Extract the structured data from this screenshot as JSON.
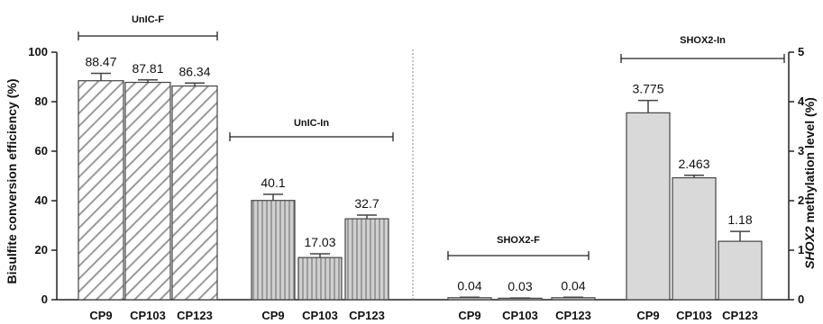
{
  "chart_data": {
    "type": "bar",
    "ylabel": "Bisulfite conversion efficiency (%)",
    "ylabel_right_italic": "SHOX2",
    "ylabel_right_rest": " methylation level (%)",
    "left_axis": {
      "ylim": [
        0,
        100
      ],
      "ticks": [
        "0",
        "20",
        "40",
        "60",
        "80",
        "100"
      ]
    },
    "right_axis": {
      "ylim": [
        0,
        5
      ],
      "ticks": [
        "0",
        "1",
        "2",
        "3",
        "4",
        "5"
      ]
    },
    "groups": [
      {
        "name": "UnIC-F",
        "axis": "left",
        "pattern": "diagonal",
        "categories": [
          "CP9",
          "CP103",
          "CP123"
        ],
        "values": [
          88.47,
          87.81,
          86.34
        ],
        "labels": [
          "88.47",
          "87.81",
          "86.34"
        ],
        "errors": [
          3,
          1,
          1.2
        ]
      },
      {
        "name": "UnIC-In",
        "axis": "left",
        "pattern": "vertical",
        "categories": [
          "CP9",
          "CP103",
          "CP123"
        ],
        "values": [
          40.1,
          17.03,
          32.7
        ],
        "labels": [
          "40.1",
          "17.03",
          "32.7"
        ],
        "errors": [
          2.5,
          1.5,
          1.5
        ]
      },
      {
        "name": "SHOX2-F",
        "axis": "right",
        "pattern": "solid",
        "categories": [
          "CP9",
          "CP103",
          "CP123"
        ],
        "values": [
          0.04,
          0.03,
          0.04
        ],
        "labels": [
          "0.04",
          "0.03",
          "0.04"
        ],
        "errors": [
          0.01,
          0.005,
          0.01
        ]
      },
      {
        "name": "SHOX2-In",
        "axis": "right",
        "pattern": "solid",
        "categories": [
          "CP9",
          "CP103",
          "CP123"
        ],
        "values": [
          3.775,
          2.463,
          1.18
        ],
        "labels": [
          "3.775",
          "2.463",
          "1.18"
        ],
        "errors": [
          0.25,
          0.05,
          0.2
        ]
      }
    ],
    "grid": false,
    "colors": {
      "bar_fill": "#d9d9d9",
      "bar_stroke": "#444444",
      "hatch": "#8c8c8c",
      "axis": "#222222",
      "divider": "#888888"
    }
  }
}
